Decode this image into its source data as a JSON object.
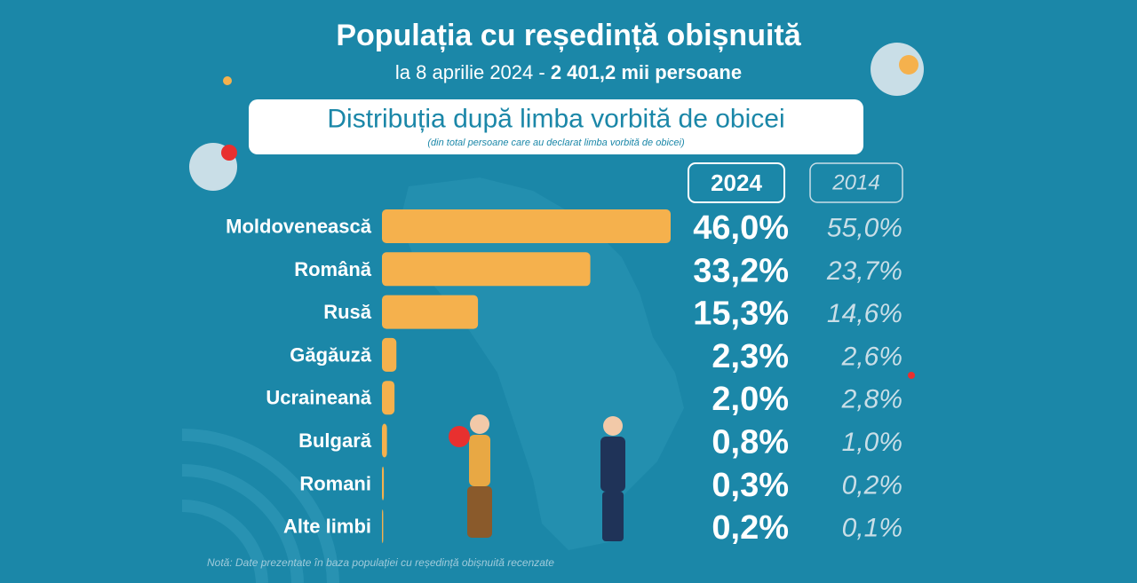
{
  "chart_data": {
    "type": "bar",
    "orientation": "horizontal",
    "title": "Populația cu reședință obișnuită",
    "subtitle": "la 8 aprilie 2024 -",
    "subtitle_highlight": "2 401,2 mii persoane",
    "heading": "Distribuția după limba vorbită de obicei",
    "heading_note": "(din total persoane care au declarat limba vorbită de obicei)",
    "note": "Notă: Date prezentate în baza populației cu reședință obișnuită recenzate",
    "categories": [
      "Moldovenească",
      "Română",
      "Rusă",
      "Găgăuză",
      "Ucraineană",
      "Bulgară",
      "Romani",
      "Alte limbi"
    ],
    "series": [
      {
        "name": "2024",
        "color": "#f5b14d",
        "values": [
          46.0,
          33.2,
          15.3,
          2.3,
          2.0,
          0.8,
          0.3,
          0.2
        ],
        "value_labels": [
          "46,0%",
          "33,2%",
          "15,3%",
          "2,3%",
          "2,0%",
          "0,8%",
          "0,3%",
          "0,2%"
        ]
      },
      {
        "name": "2014",
        "color": "#c9dee7",
        "values": [
          55.0,
          23.7,
          14.6,
          2.6,
          2.8,
          1.0,
          0.2,
          0.1
        ],
        "value_labels": [
          "55,0%",
          "23,7%",
          "14,6%",
          "2,6%",
          "2,8%",
          "1,0%",
          "0,2%",
          "0,1%"
        ]
      }
    ]
  }
}
